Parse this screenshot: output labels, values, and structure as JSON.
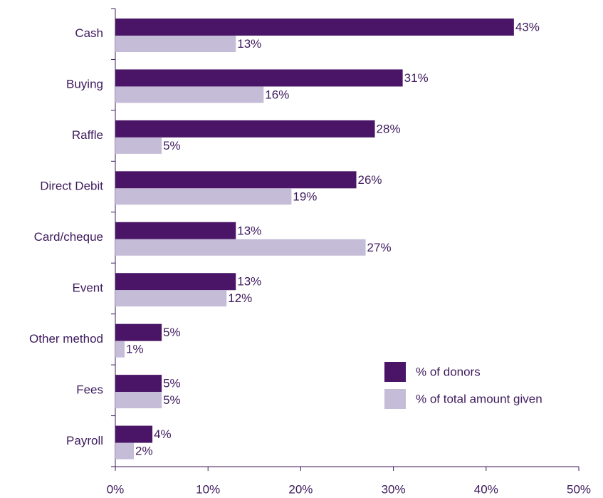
{
  "chart_data": {
    "type": "bar",
    "orientation": "horizontal",
    "categories": [
      "Cash",
      "Buying",
      "Raffle",
      "Direct Debit",
      "Card/cheque",
      "Event",
      "Other method",
      "Fees",
      "Payroll"
    ],
    "series": [
      {
        "name": "% of donors",
        "color": "#4a1566",
        "values": [
          43,
          31,
          28,
          26,
          13,
          13,
          5,
          5,
          4
        ],
        "value_labels": [
          "43%",
          "31%",
          "28%",
          "26%",
          "13%",
          "13%",
          "5%",
          "5%",
          "4%"
        ]
      },
      {
        "name": "% of total amount given",
        "color": "#c5bcd8",
        "values": [
          13,
          16,
          5,
          19,
          27,
          12,
          1,
          5,
          2
        ],
        "value_labels": [
          "13%",
          "16%",
          "5%",
          "19%",
          "27%",
          "12%",
          "1%",
          "5%",
          "2%"
        ]
      }
    ],
    "xlim": [
      0,
      50
    ],
    "xticks": [
      {
        "value": 0,
        "label": "0%"
      },
      {
        "value": 10,
        "label": "10%"
      },
      {
        "value": 20,
        "label": "20%"
      },
      {
        "value": 30,
        "label": "30%"
      },
      {
        "value": 40,
        "label": "40%"
      },
      {
        "value": 50,
        "label": "50%"
      }
    ],
    "legend": "lower right",
    "grid": false
  }
}
